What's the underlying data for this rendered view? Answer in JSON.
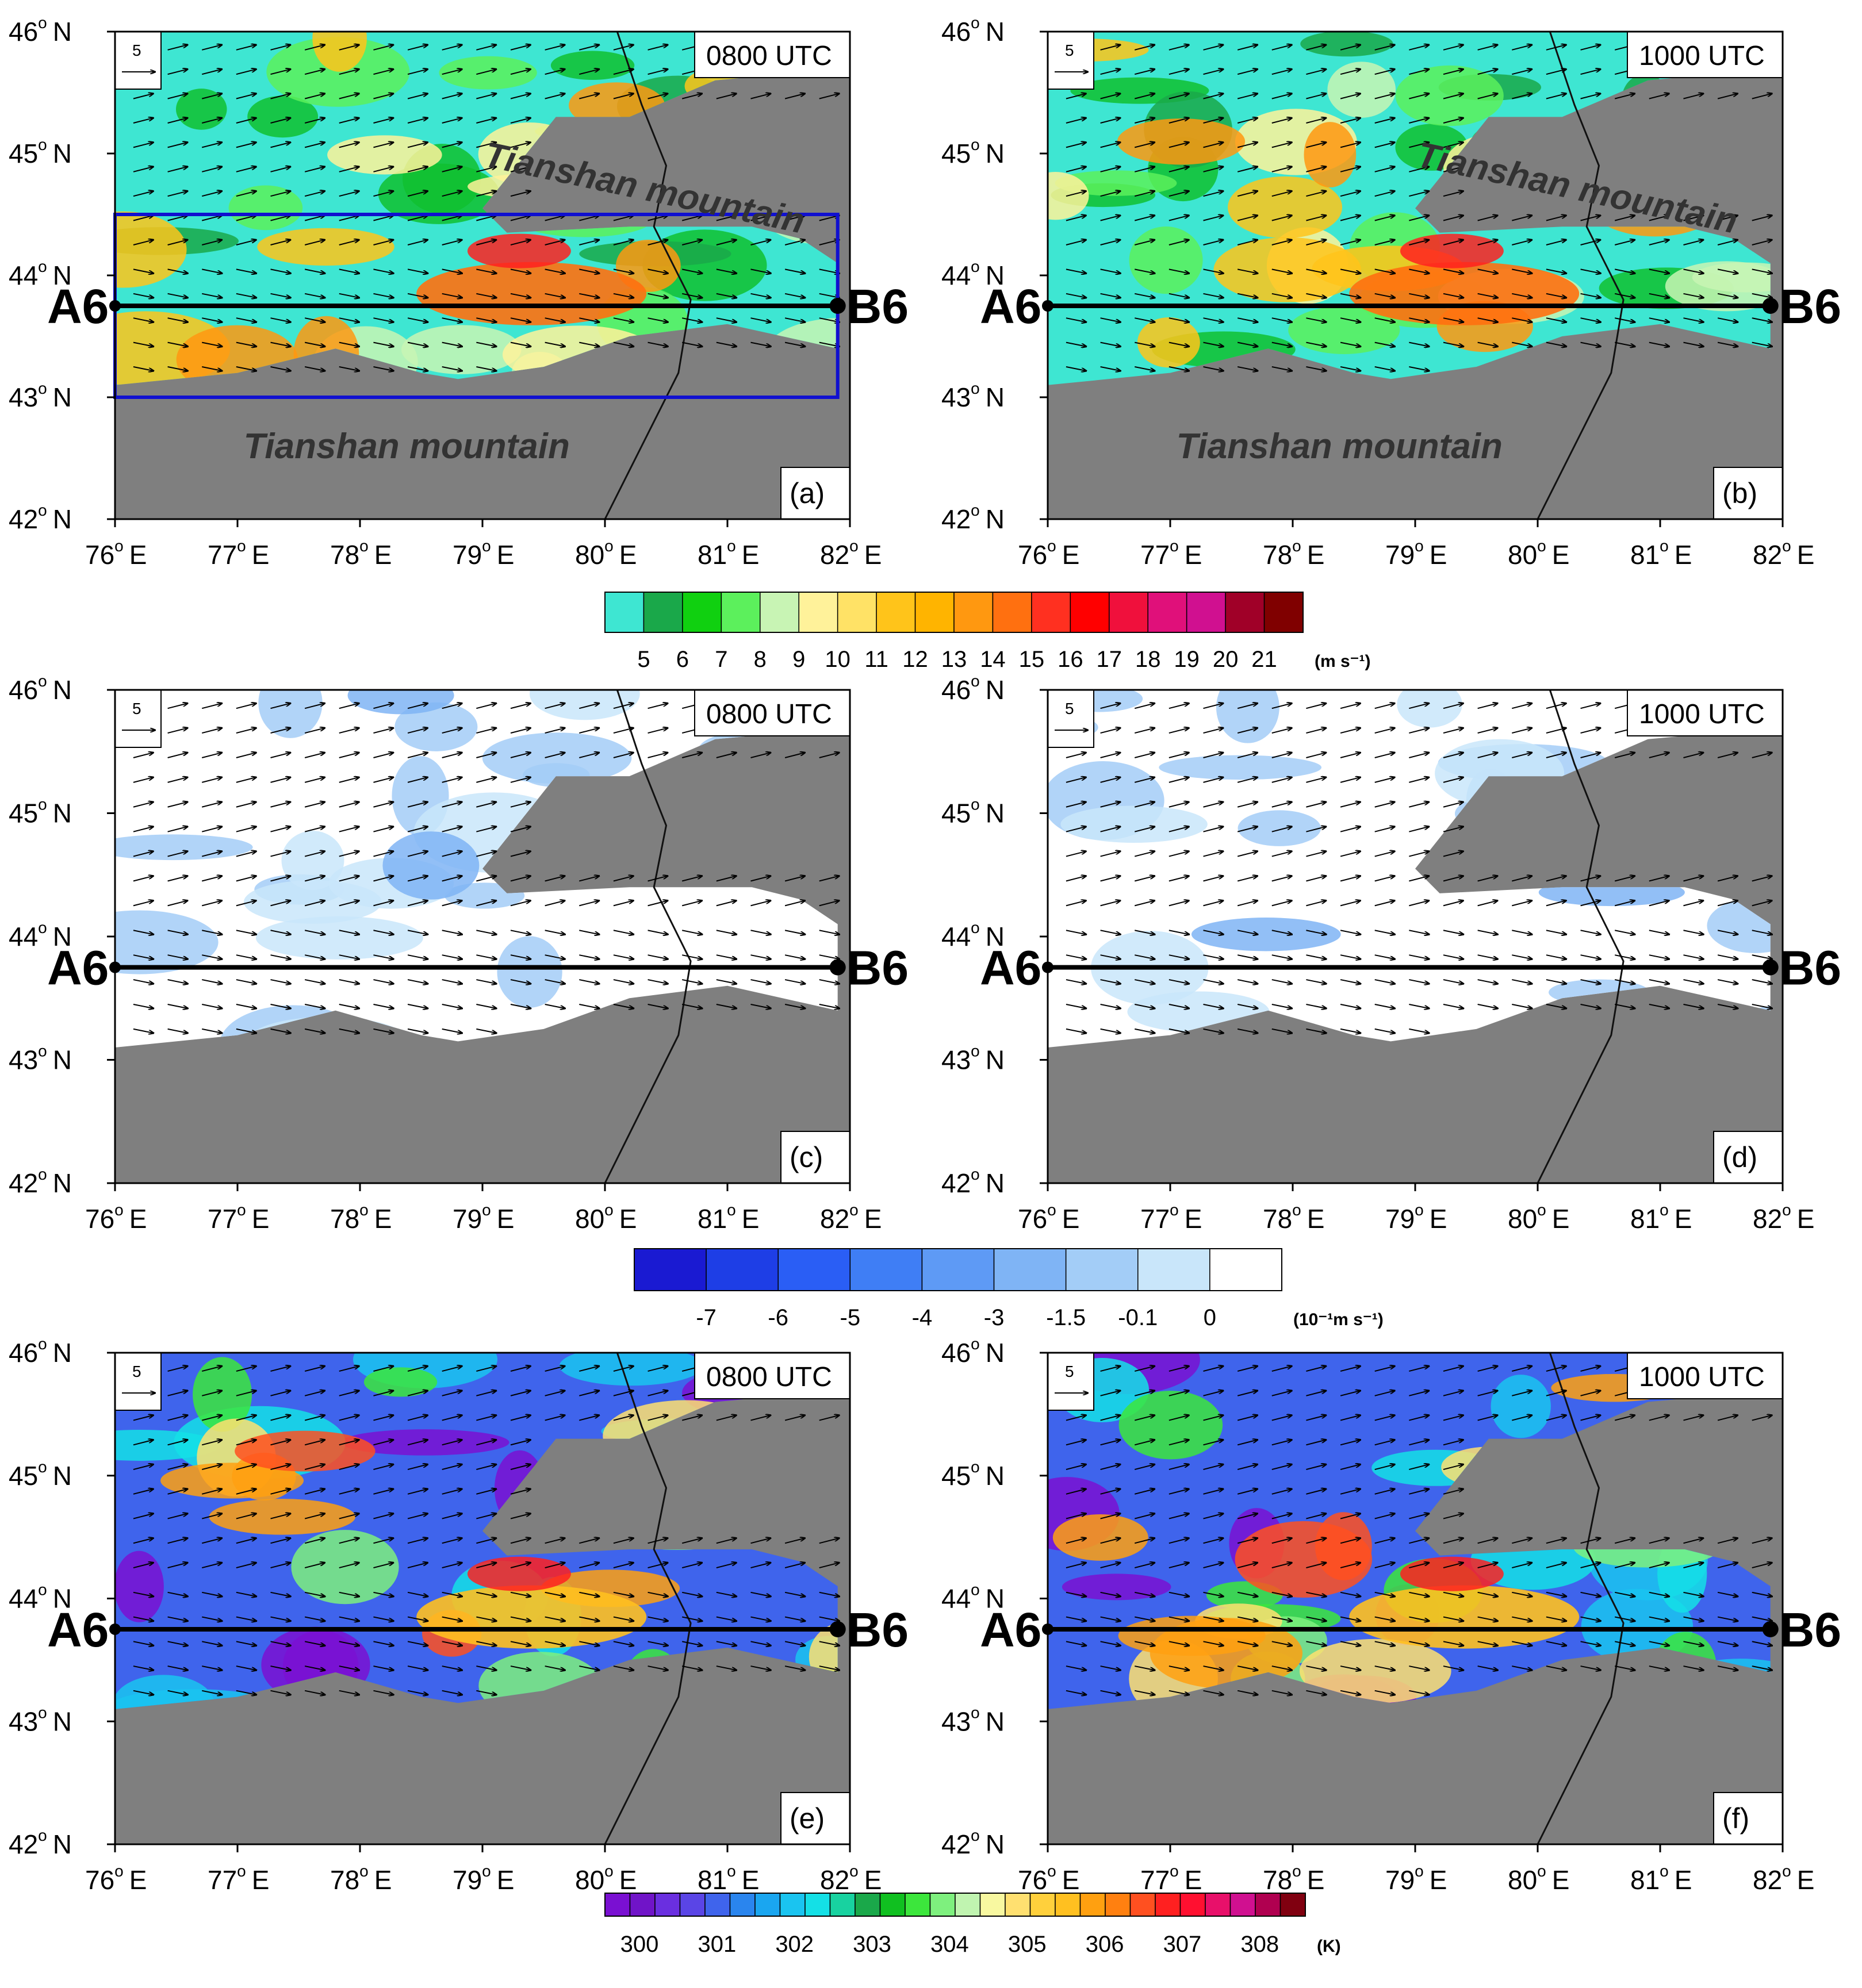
{
  "panels": [
    {
      "id": "a",
      "time": "0800 UTC",
      "label": "(a)",
      "kind": "wind",
      "mountain_labels": true,
      "box": true
    },
    {
      "id": "b",
      "time": "1000 UTC",
      "label": "(b)",
      "kind": "wind",
      "mountain_labels": true,
      "box": false
    },
    {
      "id": "c",
      "time": "0800 UTC",
      "label": "(c)",
      "kind": "w",
      "mountain_labels": false,
      "box": false
    },
    {
      "id": "d",
      "time": "1000 UTC",
      "label": "(d)",
      "kind": "w",
      "mountain_labels": false,
      "box": false
    },
    {
      "id": "e",
      "time": "0800 UTC",
      "label": "(e)",
      "kind": "theta",
      "mountain_labels": false,
      "box": false
    },
    {
      "id": "f",
      "time": "1000 UTC",
      "label": "(f)",
      "kind": "theta",
      "mountain_labels": false,
      "box": false
    }
  ],
  "axes": {
    "lat_ticks": [
      {
        "deg": "46",
        "hemi": "N"
      },
      {
        "deg": "45",
        "hemi": "N"
      },
      {
        "deg": "44",
        "hemi": "N"
      },
      {
        "deg": "43",
        "hemi": "N"
      },
      {
        "deg": "42",
        "hemi": "N"
      }
    ],
    "lon_ticks": [
      {
        "deg": "76",
        "hemi": "E"
      },
      {
        "deg": "77",
        "hemi": "E"
      },
      {
        "deg": "78",
        "hemi": "E"
      },
      {
        "deg": "79",
        "hemi": "E"
      },
      {
        "deg": "80",
        "hemi": "E"
      },
      {
        "deg": "81",
        "hemi": "E"
      },
      {
        "deg": "82",
        "hemi": "E"
      }
    ]
  },
  "cross_section": {
    "start": "A6",
    "end": "B6",
    "lat": 43.75,
    "lon_start": 76.0,
    "lon_end": 81.9
  },
  "mountain_label": "Tianshan mountain",
  "reference_vector": "5",
  "colorbars": [
    {
      "id": "speed",
      "labels": [
        "5",
        "6",
        "7",
        "8",
        "9",
        "10",
        "11",
        "12",
        "13",
        "14",
        "15",
        "16",
        "17",
        "18",
        "19",
        "20",
        "21"
      ],
      "unit": "(m s⁻¹)",
      "colors": [
        "#3ee6d2",
        "#1aa84a",
        "#10d010",
        "#5cf05c",
        "#c8f4b4",
        "#fff29a",
        "#ffe266",
        "#ffc41a",
        "#ffb400",
        "#ff9810",
        "#ff7010",
        "#ff3020",
        "#ff0000",
        "#f0103c",
        "#e0107a",
        "#d01090",
        "#a00028",
        "#800000"
      ]
    },
    {
      "id": "w",
      "labels": [
        "-7",
        "-6",
        "-5",
        "-4",
        "-3",
        "-1.5",
        "-0.1",
        "0"
      ],
      "unit": "(10⁻¹m s⁻¹)",
      "colors": [
        "#1a1ad2",
        "#1e3ee6",
        "#2a5ef5",
        "#3f7ef5",
        "#5e9af5",
        "#7fb4f5",
        "#a3cdf7",
        "#c9e6fa",
        "#ffffff"
      ]
    },
    {
      "id": "theta",
      "labels": [
        "300",
        "301",
        "302",
        "303",
        "304",
        "305",
        "306",
        "307",
        "308"
      ],
      "unit": "(K)",
      "colors": [
        "#7a10d2",
        "#7014c8",
        "#6a2fe0",
        "#5a45e6",
        "#3f64ec",
        "#2a85ee",
        "#1aa6f0",
        "#1ac4f0",
        "#14e0e6",
        "#18d2a0",
        "#1aa84a",
        "#10c020",
        "#3ce63c",
        "#7ef07e",
        "#c0f4b0",
        "#f8f8a0",
        "#ffe070",
        "#ffd03c",
        "#ffc020",
        "#ffa010",
        "#ff8010",
        "#ff5020",
        "#ff2020",
        "#ff1030",
        "#e8106a",
        "#d01090",
        "#b00050",
        "#800010"
      ]
    }
  ]
}
